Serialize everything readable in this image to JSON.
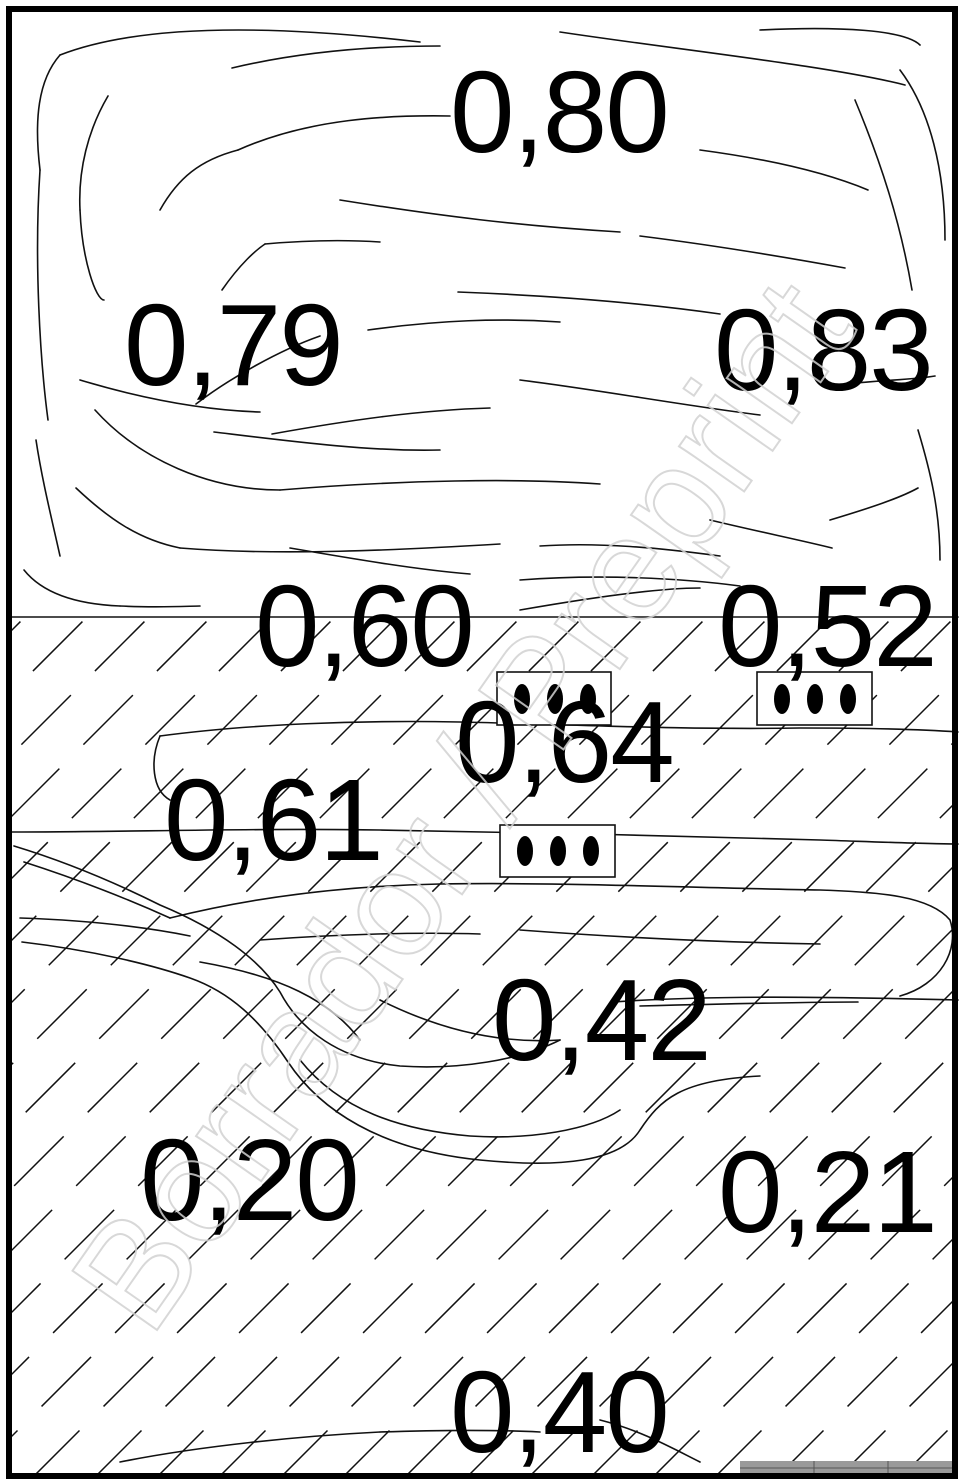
{
  "plan": {
    "watermark": "Borrador / Preprint",
    "illuminance_values": [
      {
        "id": "v-080",
        "text": "0,80"
      },
      {
        "id": "v-079",
        "text": "0,79"
      },
      {
        "id": "v-083",
        "text": "0,83"
      },
      {
        "id": "v-060",
        "text": "0,60"
      },
      {
        "id": "v-052",
        "text": "0,52"
      },
      {
        "id": "v-064",
        "text": "0,64"
      },
      {
        "id": "v-061",
        "text": "0,61"
      },
      {
        "id": "v-042",
        "text": "0,42"
      },
      {
        "id": "v-020",
        "text": "0,20"
      },
      {
        "id": "v-021",
        "text": "0,21"
      },
      {
        "id": "v-040",
        "text": "0,40"
      }
    ],
    "luminaires": [
      {
        "id": "luminaire-1",
        "lamps": 3
      },
      {
        "id": "luminaire-2",
        "lamps": 3
      },
      {
        "id": "luminaire-3",
        "lamps": 3
      }
    ]
  }
}
